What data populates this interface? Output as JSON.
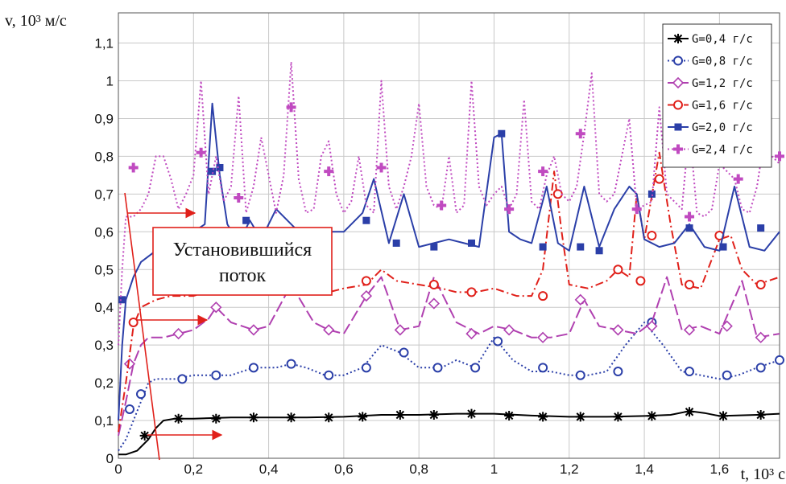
{
  "chart_data": {
    "type": "line",
    "ylabel": "v, 10³ м/с",
    "xlabel": "t, 10³ с",
    "xlim": [
      0,
      1.76
    ],
    "ylim": [
      0,
      1.18
    ],
    "xticks": [
      "0",
      "0,2",
      "0,4",
      "0,6",
      "0,8",
      "1",
      "1,2",
      "1,4",
      "1,6"
    ],
    "xtick_values": [
      0,
      0.2,
      0.4,
      0.6,
      0.8,
      1.0,
      1.2,
      1.4,
      1.6
    ],
    "yticks": [
      "0",
      "0,1",
      "0,2",
      "0,3",
      "0,4",
      "0,5",
      "0,6",
      "0,7",
      "0,8",
      "0,9",
      "1",
      "1,1"
    ],
    "ytick_values": [
      0,
      0.1,
      0.2,
      0.3,
      0.4,
      0.5,
      0.6,
      0.7,
      0.8,
      0.9,
      1.0,
      1.1
    ],
    "grid": true,
    "legend_position": "top-right",
    "annotation": {
      "line1": "Установившийся",
      "line2": "поток",
      "color": "#e0201a"
    },
    "series": [
      {
        "name": "G=0,4  г/с",
        "color": "#000000",
        "dash": "",
        "marker": "star",
        "x": [
          0,
          0.02,
          0.05,
          0.08,
          0.1,
          0.12,
          0.15,
          0.2,
          0.3,
          0.4,
          0.5,
          0.6,
          0.7,
          0.8,
          0.9,
          1.0,
          1.1,
          1.2,
          1.3,
          1.4,
          1.47,
          1.52,
          1.56,
          1.6,
          1.7,
          1.76
        ],
        "y": [
          0.01,
          0.01,
          0.02,
          0.05,
          0.08,
          0.1,
          0.105,
          0.105,
          0.108,
          0.108,
          0.108,
          0.11,
          0.115,
          0.115,
          0.118,
          0.118,
          0.113,
          0.11,
          0.11,
          0.112,
          0.115,
          0.125,
          0.12,
          0.112,
          0.115,
          0.118
        ],
        "mx": [
          0.07,
          0.16,
          0.26,
          0.36,
          0.46,
          0.56,
          0.65,
          0.75,
          0.84,
          0.94,
          1.04,
          1.13,
          1.23,
          1.33,
          1.42,
          1.52,
          1.61,
          1.71
        ],
        "my": [
          0.06,
          0.105,
          0.105,
          0.108,
          0.108,
          0.108,
          0.11,
          0.115,
          0.115,
          0.118,
          0.113,
          0.11,
          0.11,
          0.11,
          0.112,
          0.123,
          0.112,
          0.115
        ]
      },
      {
        "name": "G=0,8  г/с",
        "color": "#2b3fa8",
        "dash": "2,3",
        "marker": "circle",
        "x": [
          0,
          0.02,
          0.04,
          0.06,
          0.08,
          0.1,
          0.15,
          0.2,
          0.26,
          0.3,
          0.36,
          0.42,
          0.46,
          0.5,
          0.55,
          0.6,
          0.65,
          0.7,
          0.75,
          0.8,
          0.86,
          0.9,
          0.95,
          1.0,
          1.05,
          1.1,
          1.15,
          1.2,
          1.25,
          1.3,
          1.35,
          1.4,
          1.45,
          1.5,
          1.55,
          1.6,
          1.65,
          1.7,
          1.76
        ],
        "y": [
          0.02,
          0.05,
          0.1,
          0.15,
          0.2,
          0.21,
          0.21,
          0.22,
          0.22,
          0.22,
          0.24,
          0.24,
          0.25,
          0.24,
          0.22,
          0.22,
          0.24,
          0.3,
          0.28,
          0.24,
          0.24,
          0.26,
          0.24,
          0.32,
          0.26,
          0.23,
          0.23,
          0.22,
          0.22,
          0.23,
          0.3,
          0.36,
          0.3,
          0.23,
          0.22,
          0.21,
          0.22,
          0.24,
          0.26
        ],
        "mx": [
          0.03,
          0.06,
          0.17,
          0.26,
          0.36,
          0.46,
          0.56,
          0.66,
          0.76,
          0.85,
          0.95,
          1.01,
          1.13,
          1.23,
          1.33,
          1.42,
          1.52,
          1.62,
          1.71,
          1.76
        ],
        "my": [
          0.13,
          0.17,
          0.21,
          0.22,
          0.24,
          0.25,
          0.22,
          0.24,
          0.28,
          0.24,
          0.24,
          0.31,
          0.24,
          0.22,
          0.23,
          0.36,
          0.23,
          0.22,
          0.24,
          0.26
        ]
      },
      {
        "name": "G=1,2  г/с",
        "color": "#b040b0",
        "dash": "14,5",
        "marker": "diamond",
        "x": [
          0,
          0.02,
          0.04,
          0.06,
          0.08,
          0.12,
          0.16,
          0.2,
          0.24,
          0.26,
          0.3,
          0.36,
          0.4,
          0.46,
          0.52,
          0.56,
          0.6,
          0.66,
          0.7,
          0.75,
          0.8,
          0.84,
          0.9,
          0.96,
          1.0,
          1.05,
          1.1,
          1.15,
          1.2,
          1.24,
          1.28,
          1.33,
          1.38,
          1.42,
          1.46,
          1.5,
          1.55,
          1.6,
          1.66,
          1.7,
          1.76
        ],
        "y": [
          0.06,
          0.15,
          0.25,
          0.3,
          0.32,
          0.32,
          0.33,
          0.34,
          0.37,
          0.4,
          0.36,
          0.34,
          0.35,
          0.46,
          0.36,
          0.34,
          0.33,
          0.43,
          0.48,
          0.34,
          0.35,
          0.48,
          0.36,
          0.33,
          0.35,
          0.34,
          0.32,
          0.32,
          0.33,
          0.42,
          0.35,
          0.34,
          0.33,
          0.36,
          0.48,
          0.34,
          0.35,
          0.33,
          0.47,
          0.32,
          0.33
        ],
        "mx": [
          0.03,
          0.16,
          0.26,
          0.36,
          0.46,
          0.56,
          0.66,
          0.75,
          0.84,
          0.94,
          1.04,
          1.13,
          1.23,
          1.33,
          1.42,
          1.52,
          1.62,
          1.71
        ],
        "my": [
          0.25,
          0.33,
          0.4,
          0.34,
          0.45,
          0.34,
          0.43,
          0.34,
          0.41,
          0.33,
          0.34,
          0.32,
          0.42,
          0.34,
          0.35,
          0.34,
          0.35,
          0.32
        ]
      },
      {
        "name": "G=1,6  г/с",
        "color": "#e0201a",
        "dash": "10,4,2,4",
        "marker": "circle",
        "x": [
          0,
          0.02,
          0.04,
          0.06,
          0.1,
          0.14,
          0.2,
          0.26,
          0.3,
          0.34,
          0.4,
          0.46,
          0.5,
          0.56,
          0.6,
          0.66,
          0.7,
          0.74,
          0.8,
          0.86,
          0.9,
          0.95,
          1.0,
          1.06,
          1.1,
          1.13,
          1.16,
          1.18,
          1.2,
          1.25,
          1.3,
          1.33,
          1.36,
          1.38,
          1.4,
          1.44,
          1.47,
          1.5,
          1.55,
          1.6,
          1.63,
          1.66,
          1.7,
          1.76
        ],
        "y": [
          0.07,
          0.2,
          0.35,
          0.4,
          0.42,
          0.43,
          0.43,
          0.45,
          0.46,
          0.45,
          0.44,
          0.5,
          0.48,
          0.44,
          0.45,
          0.46,
          0.5,
          0.47,
          0.46,
          0.45,
          0.44,
          0.44,
          0.45,
          0.43,
          0.43,
          0.5,
          0.76,
          0.6,
          0.46,
          0.45,
          0.47,
          0.5,
          0.48,
          0.7,
          0.58,
          0.81,
          0.62,
          0.46,
          0.45,
          0.58,
          0.59,
          0.5,
          0.46,
          0.48
        ],
        "mx": [
          0.04,
          0.66,
          0.84,
          0.94,
          1.13,
          1.17,
          1.33,
          1.39,
          1.42,
          1.44,
          1.52,
          1.6,
          1.71
        ],
        "my": [
          0.36,
          0.47,
          0.46,
          0.44,
          0.43,
          0.7,
          0.5,
          0.47,
          0.59,
          0.74,
          0.46,
          0.59,
          0.46
        ]
      },
      {
        "name": "G=2,0  г/с",
        "color": "#2b3fa8",
        "dash": "",
        "marker": "square",
        "x": [
          0,
          0.01,
          0.02,
          0.04,
          0.06,
          0.1,
          0.14,
          0.18,
          0.2,
          0.23,
          0.25,
          0.27,
          0.29,
          0.32,
          0.35,
          0.38,
          0.42,
          0.46,
          0.5,
          0.55,
          0.6,
          0.65,
          0.68,
          0.72,
          0.76,
          0.8,
          0.84,
          0.88,
          0.92,
          0.96,
          1.0,
          1.02,
          1.04,
          1.07,
          1.1,
          1.14,
          1.17,
          1.2,
          1.24,
          1.28,
          1.32,
          1.36,
          1.38,
          1.4,
          1.44,
          1.48,
          1.52,
          1.56,
          1.6,
          1.64,
          1.68,
          1.72,
          1.76
        ],
        "y": [
          0.1,
          0.3,
          0.42,
          0.48,
          0.52,
          0.55,
          0.57,
          0.6,
          0.6,
          0.62,
          0.94,
          0.75,
          0.62,
          0.57,
          0.63,
          0.58,
          0.66,
          0.62,
          0.58,
          0.6,
          0.6,
          0.65,
          0.74,
          0.57,
          0.7,
          0.56,
          0.57,
          0.58,
          0.57,
          0.56,
          0.85,
          0.86,
          0.6,
          0.58,
          0.57,
          0.72,
          0.57,
          0.55,
          0.72,
          0.56,
          0.66,
          0.72,
          0.7,
          0.58,
          0.56,
          0.57,
          0.62,
          0.56,
          0.55,
          0.72,
          0.56,
          0.55,
          0.6
        ],
        "mx": [
          0.01,
          0.25,
          0.27,
          0.3,
          0.34,
          0.66,
          0.74,
          0.84,
          0.94,
          1.02,
          1.13,
          1.23,
          1.28,
          1.42,
          1.52,
          1.61,
          1.71
        ],
        "my": [
          0.42,
          0.76,
          0.77,
          0.6,
          0.63,
          0.63,
          0.57,
          0.56,
          0.57,
          0.86,
          0.56,
          0.56,
          0.55,
          0.7,
          0.61,
          0.56,
          0.61
        ]
      },
      {
        "name": "G=2,4  г/с",
        "color": "#c04ac0",
        "dash": "2,3",
        "marker": "plus",
        "x": [
          0,
          0.01,
          0.02,
          0.04,
          0.06,
          0.08,
          0.1,
          0.12,
          0.14,
          0.16,
          0.18,
          0.2,
          0.22,
          0.24,
          0.26,
          0.28,
          0.3,
          0.32,
          0.34,
          0.36,
          0.38,
          0.4,
          0.42,
          0.44,
          0.46,
          0.48,
          0.5,
          0.52,
          0.54,
          0.56,
          0.58,
          0.6,
          0.62,
          0.64,
          0.66,
          0.68,
          0.7,
          0.72,
          0.74,
          0.76,
          0.78,
          0.8,
          0.82,
          0.84,
          0.86,
          0.88,
          0.9,
          0.92,
          0.94,
          0.96,
          0.98,
          1.0,
          1.02,
          1.04,
          1.06,
          1.08,
          1.1,
          1.12,
          1.14,
          1.16,
          1.18,
          1.2,
          1.22,
          1.24,
          1.26,
          1.28,
          1.3,
          1.32,
          1.34,
          1.36,
          1.38,
          1.4,
          1.42,
          1.44,
          1.46,
          1.48,
          1.5,
          1.52,
          1.54,
          1.56,
          1.58,
          1.6,
          1.62,
          1.64,
          1.66,
          1.68,
          1.7,
          1.72,
          1.74,
          1.76
        ],
        "y": [
          0.3,
          0.5,
          0.64,
          0.64,
          0.66,
          0.7,
          0.8,
          0.8,
          0.74,
          0.66,
          0.7,
          0.75,
          1.0,
          0.7,
          0.8,
          0.68,
          0.72,
          0.96,
          0.65,
          0.72,
          0.85,
          0.75,
          0.65,
          0.75,
          1.05,
          0.74,
          0.65,
          0.66,
          0.8,
          0.84,
          0.7,
          0.65,
          0.68,
          0.8,
          0.67,
          0.65,
          1.0,
          0.72,
          0.66,
          0.72,
          0.8,
          0.94,
          0.72,
          0.67,
          0.66,
          0.8,
          0.65,
          0.67,
          1.0,
          0.72,
          0.67,
          0.7,
          0.72,
          0.66,
          0.7,
          0.95,
          0.68,
          0.66,
          0.75,
          0.8,
          0.7,
          0.68,
          0.72,
          0.86,
          1.02,
          0.7,
          0.68,
          0.7,
          0.8,
          0.9,
          0.66,
          0.67,
          0.68,
          0.93,
          0.7,
          0.68,
          0.66,
          0.88,
          0.65,
          0.64,
          0.66,
          0.78,
          0.76,
          0.74,
          0.66,
          0.65,
          0.72,
          0.85,
          0.8,
          0.78
        ],
        "mx": [
          0.04,
          0.22,
          0.32,
          0.46,
          0.56,
          0.7,
          0.86,
          1.04,
          1.13,
          1.23,
          1.38,
          1.52,
          1.65,
          1.76
        ],
        "my": [
          0.77,
          0.81,
          0.69,
          0.93,
          0.76,
          0.77,
          0.67,
          0.66,
          0.76,
          0.86,
          0.66,
          0.64,
          0.74,
          0.8
        ]
      }
    ]
  }
}
